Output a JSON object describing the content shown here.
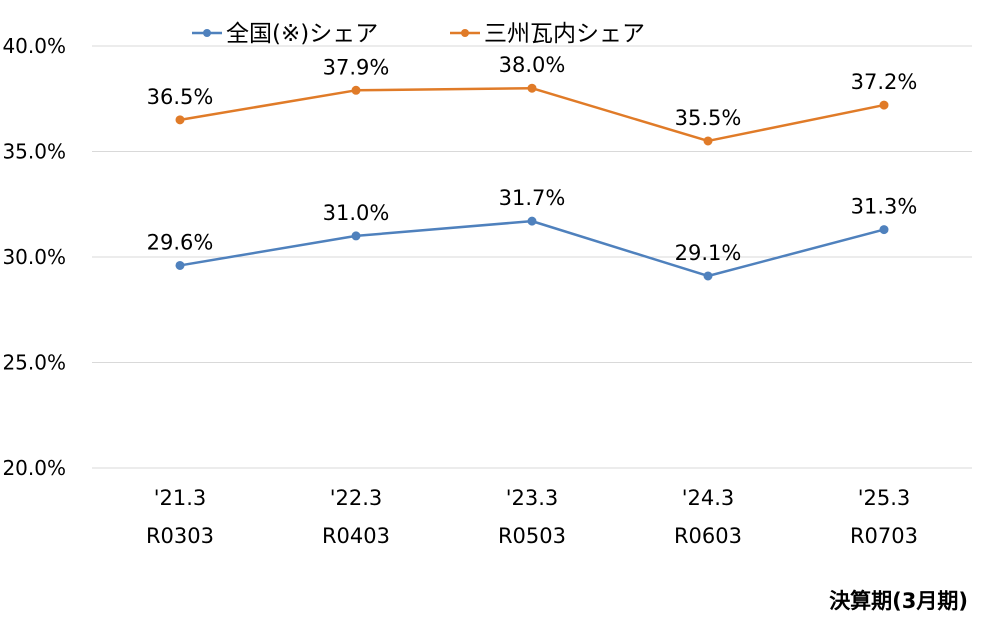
{
  "chart_data": {
    "type": "line",
    "categories": [
      [
        "'21.3",
        "R0303"
      ],
      [
        "'22.3",
        "R0403"
      ],
      [
        "'23.3",
        "R0503"
      ],
      [
        "'24.3",
        "R0603"
      ],
      [
        "'25.3",
        "R0703"
      ]
    ],
    "series": [
      {
        "name": "全国(※)シェア",
        "color": "#4f81bd",
        "values": [
          29.6,
          31.0,
          31.7,
          29.1,
          31.3
        ],
        "labels": [
          "29.6%",
          "31.0%",
          "31.7%",
          "29.1%",
          "31.3%"
        ]
      },
      {
        "name": "三州瓦内シェア",
        "color": "#e07b28",
        "values": [
          36.5,
          37.9,
          38.0,
          35.5,
          37.2
        ],
        "labels": [
          "36.5%",
          "37.9%",
          "38.0%",
          "35.5%",
          "37.2%"
        ]
      }
    ],
    "yticks": [
      "20.0%",
      "25.0%",
      "30.0%",
      "35.0%",
      "40.0%"
    ],
    "ylim": [
      20,
      40
    ],
    "xlabel": "決算期(3月期)",
    "ylabel": "",
    "grid": true,
    "legend": "top"
  }
}
